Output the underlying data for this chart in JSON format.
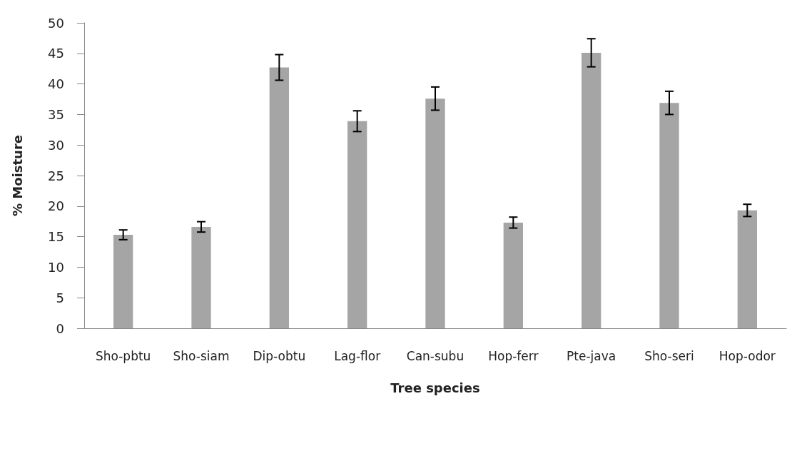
{
  "chart_data": {
    "type": "bar",
    "xlabel": "Tree species",
    "ylabel": "% Moisture",
    "categories": [
      "Sho-pbtu",
      "Sho-siam",
      "Dip-obtu",
      "Lag-flor",
      "Can-subu",
      "Hop-ferr",
      "Pte-java",
      "Sho-seri",
      "Hop-odor"
    ],
    "values": [
      15.3,
      16.6,
      42.7,
      33.9,
      37.6,
      17.3,
      45.1,
      36.9,
      19.3
    ],
    "errors": [
      0.8,
      0.85,
      2.1,
      1.7,
      1.9,
      0.9,
      2.3,
      1.9,
      1.0
    ],
    "color": "#a5a5a5",
    "ylim": [
      0,
      50
    ],
    "yticks": [
      0,
      5,
      10,
      15,
      20,
      25,
      30,
      35,
      40,
      45,
      50
    ],
    "grid": false
  }
}
